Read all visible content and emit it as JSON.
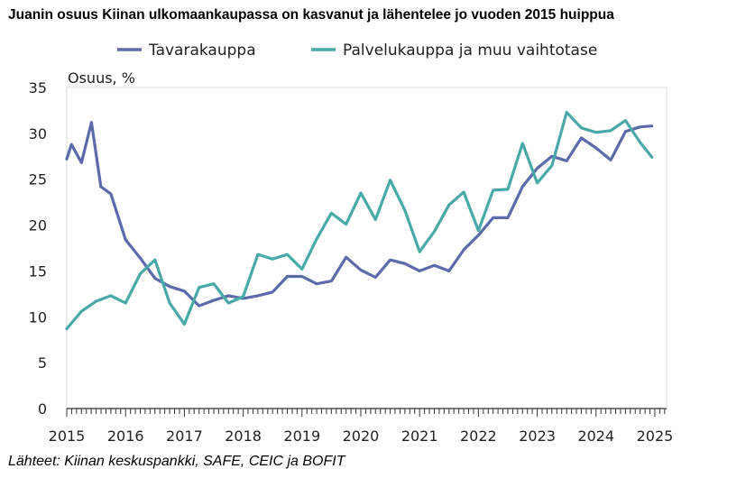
{
  "title": "Juanin osuus Kiinan ulkomaankaupassa on kasvanut ja lähentelee jo vuoden 2015 huippua",
  "source": "Lähteet: Kiinan keskuspankki, SAFE, CEIC ja BOFIT",
  "chart_data": {
    "type": "line",
    "ylabel": "Osuus, %",
    "xlabel": "",
    "ylim": [
      0,
      35
    ],
    "xlim": [
      2015,
      2025.2
    ],
    "yticks": [
      "0",
      "5",
      "10",
      "15",
      "20",
      "25",
      "30",
      "35"
    ],
    "xticks": [
      "2015",
      "2016",
      "2017",
      "2018",
      "2019",
      "2020",
      "2021",
      "2022",
      "2023",
      "2024",
      "2025"
    ],
    "grid": "none",
    "legend": "top",
    "series": [
      {
        "name": "Tavarakauppa",
        "color": "#5b6aab",
        "x": [
          2015.0,
          2015.08,
          2015.25,
          2015.42,
          2015.58,
          2015.75,
          2016.0,
          2016.25,
          2016.5,
          2016.75,
          2017.0,
          2017.25,
          2017.5,
          2017.75,
          2018.0,
          2018.25,
          2018.5,
          2018.75,
          2019.0,
          2019.25,
          2019.5,
          2019.75,
          2020.0,
          2020.25,
          2020.5,
          2020.75,
          2021.0,
          2021.25,
          2021.5,
          2021.75,
          2022.0,
          2022.25,
          2022.5,
          2022.75,
          2023.0,
          2023.25,
          2023.5,
          2023.75,
          2024.0,
          2024.25,
          2024.5,
          2024.75,
          2024.95
        ],
        "values": [
          27.2,
          28.8,
          26.8,
          31.2,
          24.2,
          23.4,
          18.4,
          16.4,
          14.2,
          13.3,
          12.8,
          11.2,
          11.8,
          12.3,
          12.0,
          12.3,
          12.7,
          14.4,
          14.4,
          13.6,
          13.9,
          16.5,
          15.1,
          14.3,
          16.2,
          15.8,
          15.0,
          15.6,
          15.0,
          17.3,
          18.9,
          20.8,
          20.8,
          24.2,
          26.2,
          27.5,
          27.0,
          29.5,
          28.4,
          27.1,
          30.2,
          30.7,
          30.8
        ]
      },
      {
        "name": "Palvelukauppa ja muu vaihtotase",
        "color": "#48aaa8",
        "x": [
          2015.0,
          2015.25,
          2015.5,
          2015.75,
          2016.0,
          2016.25,
          2016.5,
          2016.75,
          2017.0,
          2017.25,
          2017.5,
          2017.75,
          2018.0,
          2018.25,
          2018.5,
          2018.75,
          2019.0,
          2019.25,
          2019.5,
          2019.75,
          2020.0,
          2020.25,
          2020.5,
          2020.75,
          2021.0,
          2021.25,
          2021.5,
          2021.75,
          2022.0,
          2022.25,
          2022.5,
          2022.75,
          2023.0,
          2023.25,
          2023.5,
          2023.75,
          2024.0,
          2024.25,
          2024.5,
          2024.75,
          2024.95
        ],
        "values": [
          8.7,
          10.6,
          11.7,
          12.3,
          11.5,
          14.7,
          16.2,
          11.5,
          9.2,
          13.2,
          13.6,
          11.5,
          12.2,
          16.8,
          16.3,
          16.8,
          15.2,
          18.5,
          21.3,
          20.1,
          23.5,
          20.6,
          24.9,
          21.6,
          17.1,
          19.3,
          22.2,
          23.6,
          19.4,
          23.8,
          23.9,
          28.9,
          24.6,
          26.5,
          32.3,
          30.6,
          30.1,
          30.3,
          31.4,
          29.0,
          27.4
        ]
      }
    ]
  }
}
